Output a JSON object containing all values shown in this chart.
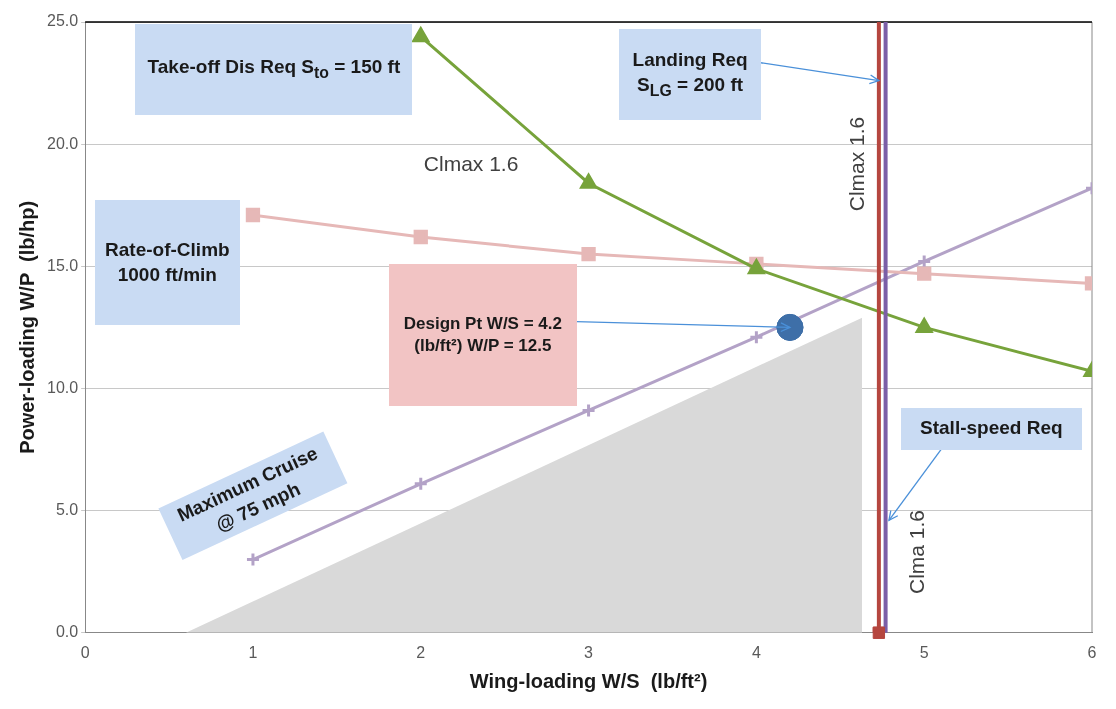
{
  "chart_data": {
    "type": "line",
    "xlabel": "Wing-loading W/S  (lb/ft²)",
    "ylabel": "Power-loading W/P  (lb/hp)",
    "xlim": [
      0,
      6
    ],
    "xticks": [
      0,
      1,
      2,
      3,
      4,
      5,
      6
    ],
    "ylim": [
      0,
      25
    ],
    "yticks": [
      {
        "value": 0,
        "label": "0.0"
      },
      {
        "value": 5,
        "label": "5.0"
      },
      {
        "value": 10,
        "label": "10.0"
      },
      {
        "value": 15,
        "label": "15.0"
      },
      {
        "value": 20,
        "label": "20.0"
      },
      {
        "value": 25,
        "label": "25.0"
      }
    ],
    "grid": "y",
    "legend": false,
    "series": [
      {
        "name": "Take-off Dis Req S$_{to}$ = 150 ft",
        "marker": "triangle",
        "color": "#77a33b",
        "x": [
          2,
          3,
          4,
          5,
          6
        ],
        "values": [
          24.4,
          18.4,
          14.9,
          12.5,
          10.7
        ]
      },
      {
        "name": "Rate-of-Climb 1000 ft/min",
        "marker": "square",
        "color": "#e6b8b7",
        "x": [
          1,
          2,
          3,
          4,
          5,
          6
        ],
        "values": [
          17.1,
          16.2,
          15.5,
          15.1,
          14.7,
          14.3
        ]
      },
      {
        "name": "Maximum Cruise @ 75 mph",
        "marker": "cross",
        "color": "#b3a2c7",
        "x": [
          1,
          2,
          3,
          4,
          5,
          6
        ],
        "values": [
          3.0,
          6.1,
          9.1,
          12.1,
          15.2,
          18.2
        ]
      },
      {
        "type": "scatter",
        "marker": "circle",
        "color": "#3e6fa8",
        "x": [
          4.2
        ],
        "values": [
          12.5
        ]
      },
      {
        "type": "area",
        "marker": "none",
        "color": "#d9d9d9",
        "x": [
          0.6,
          4.63
        ],
        "values": [
          0,
          12.9
        ]
      },
      {
        "type": "scatter",
        "marker": "square",
        "color": "#b5463f",
        "x": [
          4.73
        ],
        "values": [
          0
        ]
      }
    ],
    "ref_lines": [
      {
        "axis": "x",
        "value": 4.73,
        "color": "#b5463f"
      },
      {
        "axis": "x",
        "value": 4.77,
        "color": "#7b5ea7"
      }
    ],
    "annotations": [
      "Clmax 1.6",
      {
        "text": "Design Pt W/S = 4.2 (lb/ft²) W/P = 12.5",
        "x": 4.2,
        "y": 12.5
      },
      "Clmax 1.6",
      "Clma 1.6",
      {
        "text": "Landing Req S$_{LG}$ = 200 ft",
        "x": 4.73,
        "y": 22.6
      },
      {
        "text": "Stall-speed Req",
        "x": 4.79,
        "y": 4.6
      }
    ]
  }
}
